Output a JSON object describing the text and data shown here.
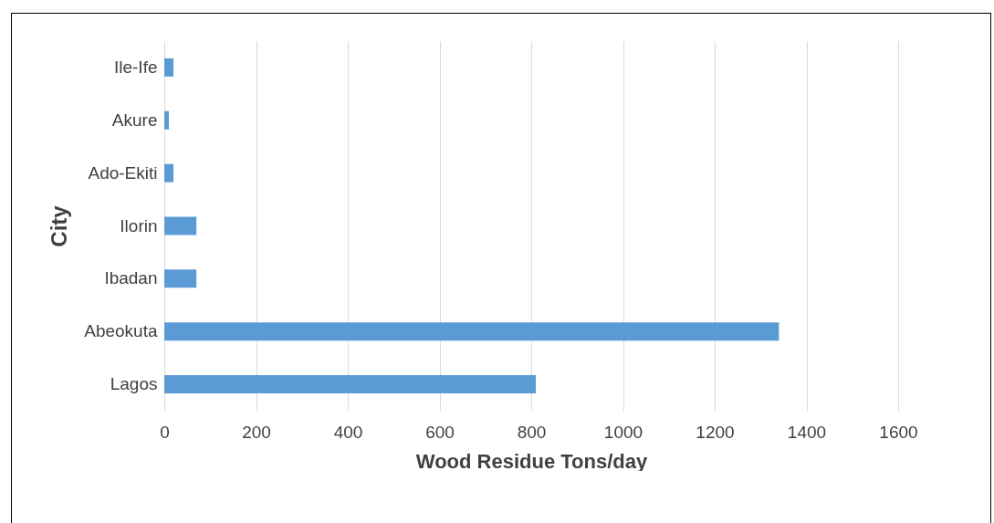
{
  "chart_data": {
    "type": "bar",
    "orientation": "horizontal",
    "xlabel": "Wood Residue Tons/day",
    "ylabel": "City",
    "categories": [
      "Ile-Ife",
      "Akure",
      "Ado-Ekiti",
      "Ilorin",
      "Ibadan",
      "Abeokuta",
      "Lagos"
    ],
    "values": [
      20,
      10,
      20,
      70,
      70,
      1340,
      810
    ],
    "color": "#5b9bd5",
    "xlim": [
      0,
      1600
    ],
    "xticks": [
      0,
      200,
      400,
      600,
      800,
      1000,
      1200,
      1400,
      1600
    ],
    "grid": "x"
  }
}
